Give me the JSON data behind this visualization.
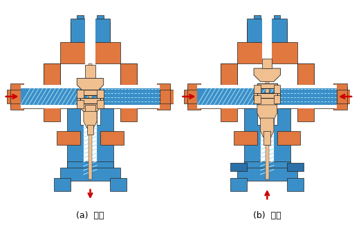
{
  "title_a": "(a)  分流",
  "title_b": "(b)  合流",
  "bg_color": "#ffffff",
  "orange": "#E07840",
  "blue": "#3B8FC8",
  "light_orange": "#F0C090",
  "arrow_color": "#CC0000",
  "light_blue": "#7BBFE0",
  "white": "#ffffff",
  "dark_blue": "#2B70A8",
  "outline": "#222222"
}
